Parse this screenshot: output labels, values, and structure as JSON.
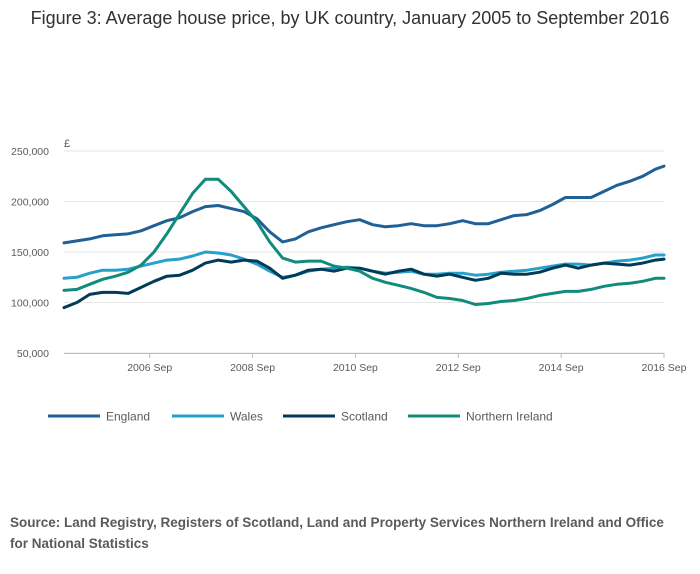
{
  "title": "Figure 3: Average house price, by UK country, January 2005 to September 2016",
  "source": "Source: Land Registry, Registers of Scotland, Land and Property Services Northern Ireland and Office for National Statistics",
  "chart_data": {
    "type": "line",
    "title": "Figure 3: Average house price, by UK country, January 2005 to September 2016",
    "ylabel": "£",
    "xlim": [
      "2005-01",
      "2016-09"
    ],
    "ylim": [
      50000,
      250000
    ],
    "yticks": [
      50000,
      100000,
      150000,
      200000,
      250000
    ],
    "ytick_labels": [
      "50,000",
      "100,000",
      "150,000",
      "200,000",
      "250,000"
    ],
    "xticks": [
      "2006-09",
      "2008-09",
      "2010-09",
      "2012-09",
      "2014-09",
      "2016-09"
    ],
    "xtick_labels": [
      "2006 Sep",
      "2008 Sep",
      "2010 Sep",
      "2012 Sep",
      "2014 Sep",
      "2016 Sep"
    ],
    "grid": true,
    "legend_position": "bottom",
    "series": [
      {
        "name": "England",
        "color": "#206095",
        "points": [
          [
            "2005-01",
            159000
          ],
          [
            "2005-04",
            161000
          ],
          [
            "2005-07",
            163000
          ],
          [
            "2005-10",
            166000
          ],
          [
            "2006-01",
            167000
          ],
          [
            "2006-04",
            168000
          ],
          [
            "2006-07",
            171000
          ],
          [
            "2006-10",
            176000
          ],
          [
            "2007-01",
            181000
          ],
          [
            "2007-04",
            184000
          ],
          [
            "2007-07",
            190000
          ],
          [
            "2007-10",
            195000
          ],
          [
            "2008-01",
            196000
          ],
          [
            "2008-04",
            193000
          ],
          [
            "2008-07",
            190000
          ],
          [
            "2008-10",
            183000
          ],
          [
            "2009-01",
            170000
          ],
          [
            "2009-04",
            160000
          ],
          [
            "2009-07",
            163000
          ],
          [
            "2009-10",
            170000
          ],
          [
            "2010-01",
            174000
          ],
          [
            "2010-04",
            177000
          ],
          [
            "2010-07",
            180000
          ],
          [
            "2010-10",
            182000
          ],
          [
            "2011-01",
            177000
          ],
          [
            "2011-04",
            175000
          ],
          [
            "2011-07",
            176000
          ],
          [
            "2011-10",
            178000
          ],
          [
            "2012-01",
            176000
          ],
          [
            "2012-04",
            176000
          ],
          [
            "2012-07",
            178000
          ],
          [
            "2012-10",
            181000
          ],
          [
            "2013-01",
            178000
          ],
          [
            "2013-04",
            178000
          ],
          [
            "2013-07",
            182000
          ],
          [
            "2013-10",
            186000
          ],
          [
            "2014-01",
            187000
          ],
          [
            "2014-04",
            191000
          ],
          [
            "2014-07",
            197000
          ],
          [
            "2014-10",
            204000
          ],
          [
            "2015-01",
            204000
          ],
          [
            "2015-04",
            204000
          ],
          [
            "2015-07",
            210000
          ],
          [
            "2015-10",
            216000
          ],
          [
            "2016-01",
            220000
          ],
          [
            "2016-04",
            225000
          ],
          [
            "2016-07",
            232000
          ],
          [
            "2016-09",
            235000
          ]
        ]
      },
      {
        "name": "Wales",
        "color": "#27a0cc",
        "points": [
          [
            "2005-01",
            124000
          ],
          [
            "2005-04",
            125000
          ],
          [
            "2005-07",
            129000
          ],
          [
            "2005-10",
            132000
          ],
          [
            "2006-01",
            132000
          ],
          [
            "2006-04",
            133000
          ],
          [
            "2006-07",
            136000
          ],
          [
            "2006-10",
            139000
          ],
          [
            "2007-01",
            142000
          ],
          [
            "2007-04",
            143000
          ],
          [
            "2007-07",
            146000
          ],
          [
            "2007-10",
            150000
          ],
          [
            "2008-01",
            149000
          ],
          [
            "2008-04",
            147000
          ],
          [
            "2008-07",
            143000
          ],
          [
            "2008-10",
            138000
          ],
          [
            "2009-01",
            131000
          ],
          [
            "2009-04",
            125000
          ],
          [
            "2009-07",
            127000
          ],
          [
            "2009-10",
            131000
          ],
          [
            "2010-01",
            133000
          ],
          [
            "2010-04",
            134000
          ],
          [
            "2010-07",
            135000
          ],
          [
            "2010-10",
            134000
          ],
          [
            "2011-01",
            131000
          ],
          [
            "2011-04",
            129000
          ],
          [
            "2011-07",
            130000
          ],
          [
            "2011-10",
            131000
          ],
          [
            "2012-01",
            128000
          ],
          [
            "2012-04",
            128000
          ],
          [
            "2012-07",
            129000
          ],
          [
            "2012-10",
            129000
          ],
          [
            "2013-01",
            127000
          ],
          [
            "2013-04",
            128000
          ],
          [
            "2013-07",
            130000
          ],
          [
            "2013-10",
            131000
          ],
          [
            "2014-01",
            132000
          ],
          [
            "2014-04",
            134000
          ],
          [
            "2014-07",
            136000
          ],
          [
            "2014-10",
            138000
          ],
          [
            "2015-01",
            138000
          ],
          [
            "2015-04",
            137000
          ],
          [
            "2015-07",
            139000
          ],
          [
            "2015-10",
            141000
          ],
          [
            "2016-01",
            142000
          ],
          [
            "2016-04",
            144000
          ],
          [
            "2016-07",
            147000
          ],
          [
            "2016-09",
            147000
          ]
        ]
      },
      {
        "name": "Scotland",
        "color": "#003c57",
        "points": [
          [
            "2005-01",
            95000
          ],
          [
            "2005-04",
            100000
          ],
          [
            "2005-07",
            108000
          ],
          [
            "2005-10",
            110000
          ],
          [
            "2006-01",
            110000
          ],
          [
            "2006-04",
            109000
          ],
          [
            "2006-07",
            115000
          ],
          [
            "2006-10",
            121000
          ],
          [
            "2007-01",
            126000
          ],
          [
            "2007-04",
            127000
          ],
          [
            "2007-07",
            132000
          ],
          [
            "2007-10",
            139000
          ],
          [
            "2008-01",
            142000
          ],
          [
            "2008-04",
            140000
          ],
          [
            "2008-07",
            142000
          ],
          [
            "2008-10",
            141000
          ],
          [
            "2009-01",
            134000
          ],
          [
            "2009-04",
            124000
          ],
          [
            "2009-07",
            127000
          ],
          [
            "2009-10",
            132000
          ],
          [
            "2010-01",
            133000
          ],
          [
            "2010-04",
            131000
          ],
          [
            "2010-07",
            134000
          ],
          [
            "2010-10",
            134000
          ],
          [
            "2011-01",
            131000
          ],
          [
            "2011-04",
            128000
          ],
          [
            "2011-07",
            131000
          ],
          [
            "2011-10",
            133000
          ],
          [
            "2012-01",
            128000
          ],
          [
            "2012-04",
            126000
          ],
          [
            "2012-07",
            128000
          ],
          [
            "2012-10",
            125000
          ],
          [
            "2013-01",
            122000
          ],
          [
            "2013-04",
            124000
          ],
          [
            "2013-07",
            129000
          ],
          [
            "2013-10",
            128000
          ],
          [
            "2014-01",
            128000
          ],
          [
            "2014-04",
            130000
          ],
          [
            "2014-07",
            134000
          ],
          [
            "2014-10",
            137000
          ],
          [
            "2015-01",
            134000
          ],
          [
            "2015-04",
            137000
          ],
          [
            "2015-07",
            139000
          ],
          [
            "2015-10",
            138000
          ],
          [
            "2016-01",
            137000
          ],
          [
            "2016-04",
            139000
          ],
          [
            "2016-07",
            142000
          ],
          [
            "2016-09",
            143000
          ]
        ]
      },
      {
        "name": "Northern Ireland",
        "color": "#118c7b",
        "points": [
          [
            "2005-01",
            112000
          ],
          [
            "2005-04",
            113000
          ],
          [
            "2005-07",
            118000
          ],
          [
            "2005-10",
            123000
          ],
          [
            "2006-01",
            126000
          ],
          [
            "2006-04",
            130000
          ],
          [
            "2006-07",
            137000
          ],
          [
            "2006-10",
            150000
          ],
          [
            "2007-01",
            168000
          ],
          [
            "2007-04",
            188000
          ],
          [
            "2007-07",
            208000
          ],
          [
            "2007-10",
            222000
          ],
          [
            "2008-01",
            222000
          ],
          [
            "2008-04",
            210000
          ],
          [
            "2008-07",
            195000
          ],
          [
            "2008-10",
            180000
          ],
          [
            "2009-01",
            160000
          ],
          [
            "2009-04",
            144000
          ],
          [
            "2009-07",
            140000
          ],
          [
            "2009-10",
            141000
          ],
          [
            "2010-01",
            141000
          ],
          [
            "2010-04",
            136000
          ],
          [
            "2010-07",
            134000
          ],
          [
            "2010-10",
            131000
          ],
          [
            "2011-01",
            124000
          ],
          [
            "2011-04",
            120000
          ],
          [
            "2011-07",
            117000
          ],
          [
            "2011-10",
            114000
          ],
          [
            "2012-01",
            110000
          ],
          [
            "2012-04",
            105000
          ],
          [
            "2012-07",
            104000
          ],
          [
            "2012-10",
            102000
          ],
          [
            "2013-01",
            98000
          ],
          [
            "2013-04",
            99000
          ],
          [
            "2013-07",
            101000
          ],
          [
            "2013-10",
            102000
          ],
          [
            "2014-01",
            104000
          ],
          [
            "2014-04",
            107000
          ],
          [
            "2014-07",
            109000
          ],
          [
            "2014-10",
            111000
          ],
          [
            "2015-01",
            111000
          ],
          [
            "2015-04",
            113000
          ],
          [
            "2015-07",
            116000
          ],
          [
            "2015-10",
            118000
          ],
          [
            "2016-01",
            119000
          ],
          [
            "2016-04",
            121000
          ],
          [
            "2016-07",
            124000
          ],
          [
            "2016-09",
            124000
          ]
        ]
      }
    ]
  }
}
